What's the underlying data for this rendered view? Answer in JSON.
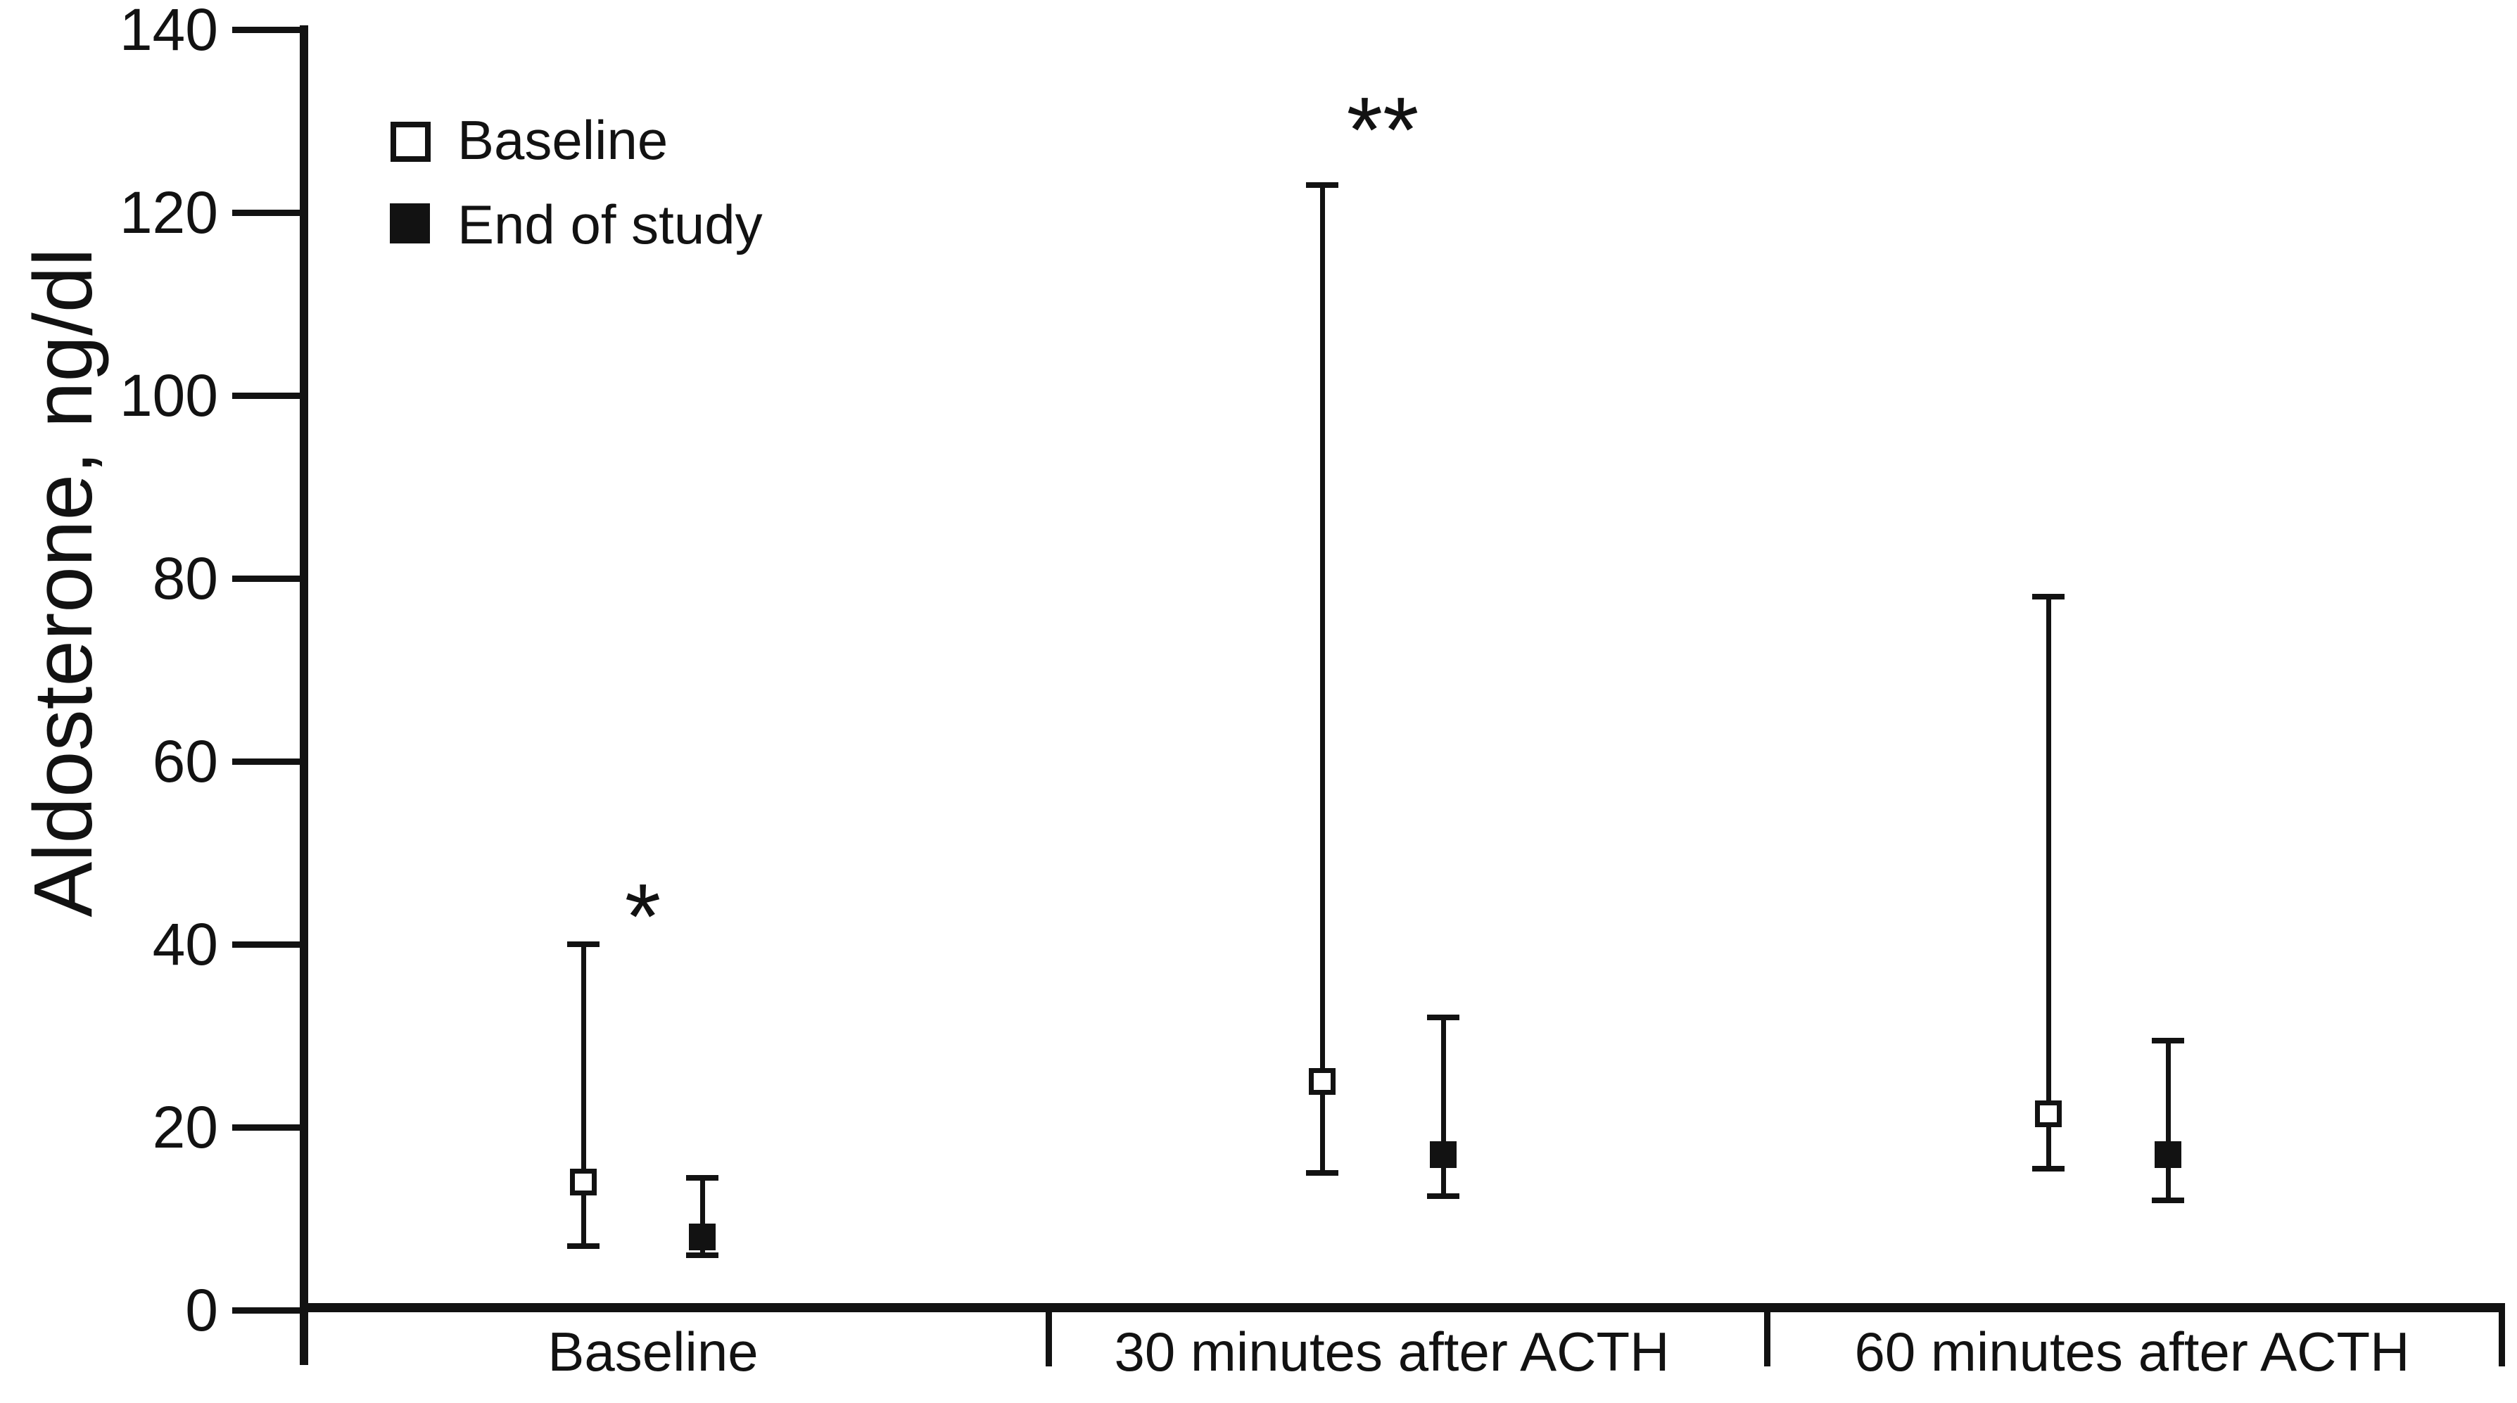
{
  "figure": {
    "background_color": "#ffffff",
    "ink_color": "#121212"
  },
  "y_axis": {
    "label": "Aldosterone, ng/dl",
    "tick_values": [
      0,
      20,
      40,
      60,
      80,
      100,
      120,
      140
    ],
    "min": 0,
    "max": 140
  },
  "legend": {
    "items": [
      {
        "label": "Baseline",
        "marker": "open-square"
      },
      {
        "label": "End of study",
        "marker": "filled-square"
      }
    ]
  },
  "chart_data": {
    "type": "scatter",
    "subtype": "median-with-range-error-bars",
    "title": "",
    "xlabel": "",
    "ylabel": "Aldosterone, ng/dl",
    "ylim": [
      0,
      140
    ],
    "yticks": [
      0,
      20,
      40,
      60,
      80,
      100,
      120,
      140
    ],
    "grid": false,
    "legend_position": "top-left",
    "categories": [
      "Baseline",
      "30 minutes after ACTH",
      "60 minutes after ACTH"
    ],
    "series": [
      {
        "name": "Baseline",
        "marker": "open-square",
        "points": [
          {
            "category": "Baseline",
            "median": 14,
            "low": 7,
            "high": 40
          },
          {
            "category": "30 minutes after ACTH",
            "median": 25,
            "low": 15,
            "high": 123
          },
          {
            "category": "60 minutes after ACTH",
            "median": 21.5,
            "low": 15.5,
            "high": 78
          }
        ]
      },
      {
        "name": "End of study",
        "marker": "filled-square",
        "points": [
          {
            "category": "Baseline",
            "median": 8,
            "low": 6,
            "high": 14.5
          },
          {
            "category": "30 minutes after ACTH",
            "median": 17,
            "low": 12.5,
            "high": 32
          },
          {
            "category": "60 minutes after ACTH",
            "median": 17,
            "low": 12,
            "high": 29.5
          }
        ]
      }
    ],
    "annotations": [
      {
        "text": "*",
        "category_index": 0,
        "value": 45
      },
      {
        "text": "**",
        "category_index": 1,
        "value": 131
      }
    ]
  }
}
